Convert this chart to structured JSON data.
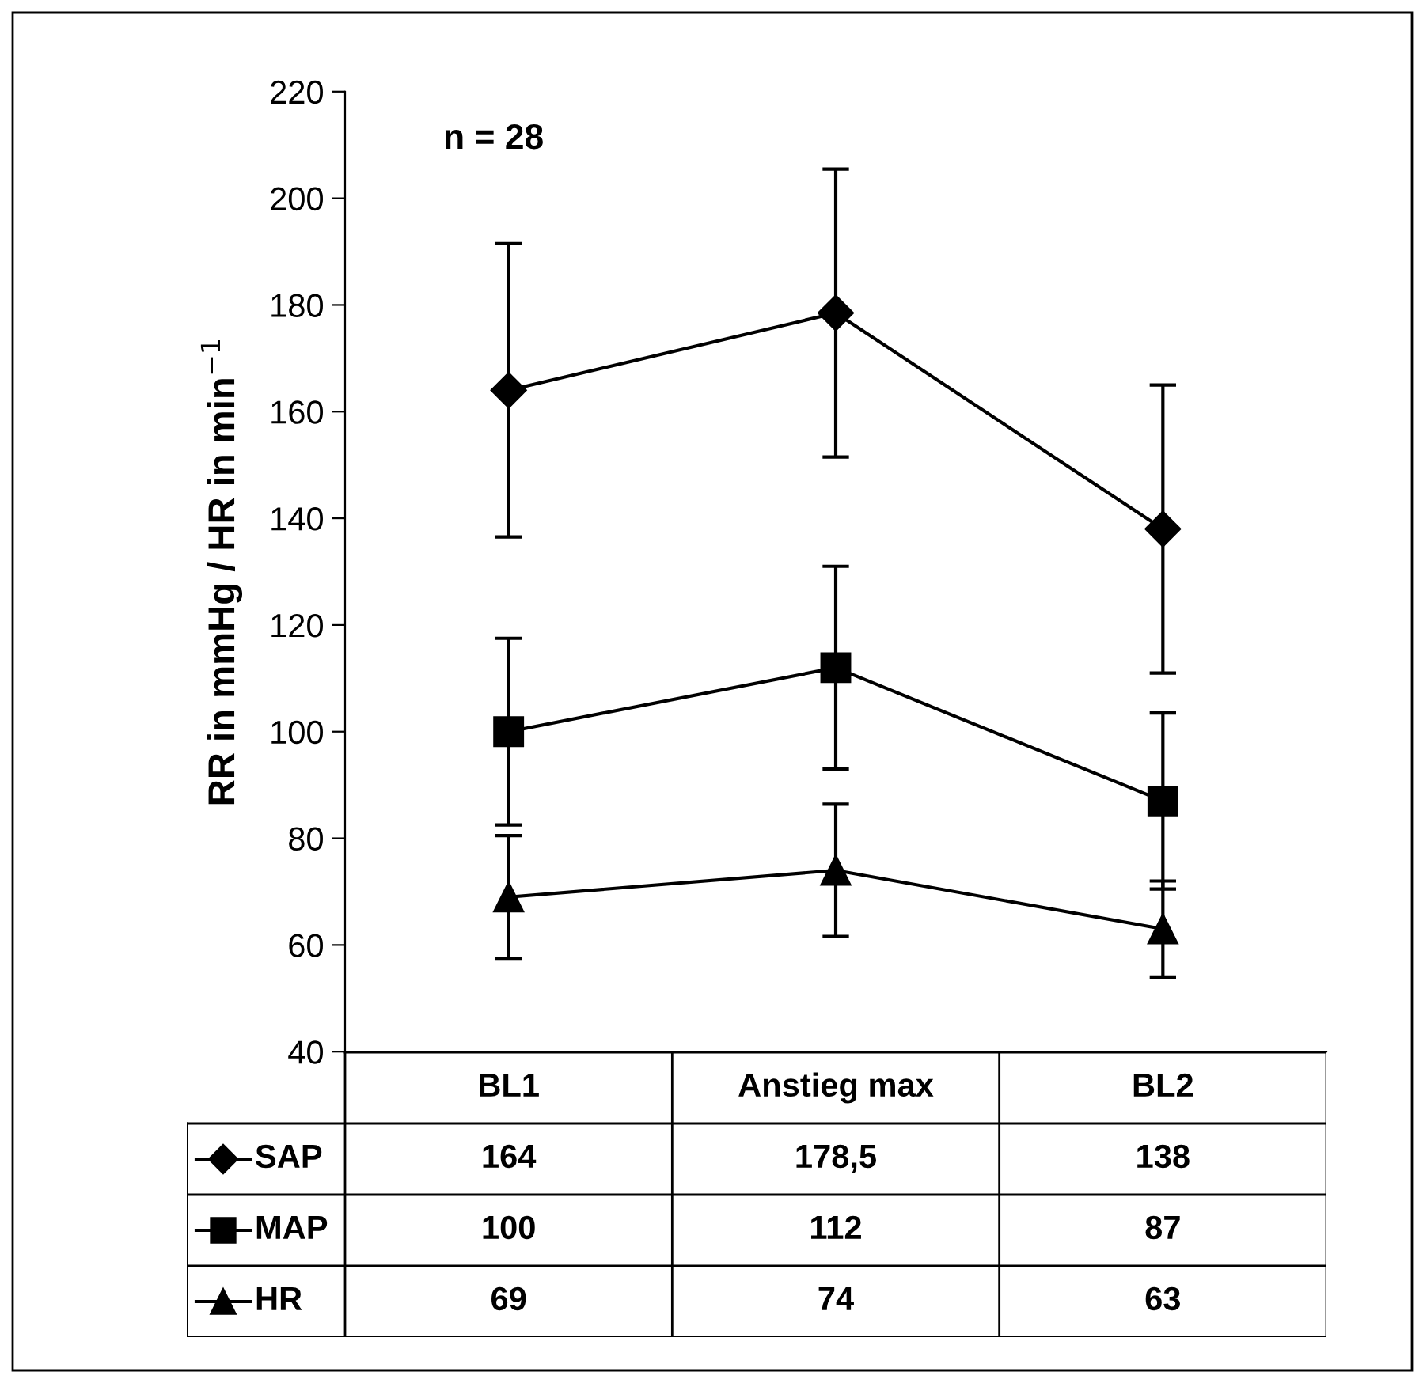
{
  "chart_data": {
    "type": "line",
    "ylabel": "RR in mmHg / HR in min$^{−1}$",
    "annotations": [
      "n = 28"
    ],
    "categories": [
      "BL1",
      "Anstieg max",
      "BL2"
    ],
    "series": [
      {
        "name": "SAP",
        "color": "#000000",
        "marker": "diamond",
        "values": [
          164,
          178.5,
          138
        ],
        "errors": [
          27.5,
          27,
          27
        ],
        "value_labels": [
          "164",
          "178,5",
          "138"
        ]
      },
      {
        "name": "MAP",
        "color": "#000000",
        "marker": "square",
        "values": [
          100,
          112,
          87
        ],
        "errors": [
          17.5,
          19,
          16.5
        ],
        "value_labels": [
          "100",
          "112",
          "87"
        ]
      },
      {
        "name": "HR",
        "color": "#000000",
        "marker": "triangle",
        "values": [
          69,
          74,
          63
        ],
        "errors": [
          11.5,
          12.4,
          9
        ],
        "value_labels": [
          "69",
          "74",
          "63"
        ]
      }
    ],
    "ylim": [
      40,
      220
    ],
    "yticks": [
      40,
      60,
      80,
      100,
      120,
      140,
      160,
      180,
      200,
      220
    ],
    "grid": false,
    "legend": "bottom",
    "line_style": "solid"
  }
}
